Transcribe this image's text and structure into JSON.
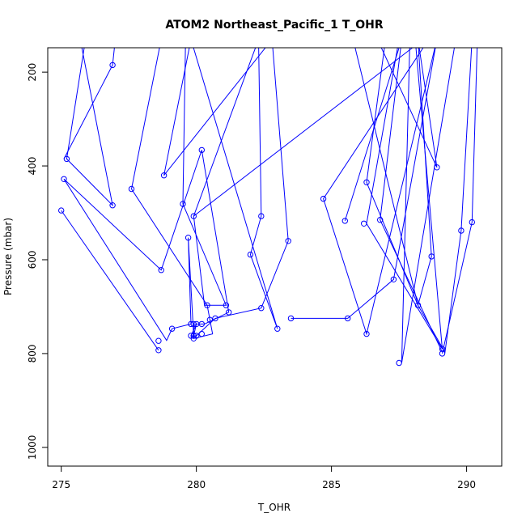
{
  "chart_data": {
    "type": "line",
    "title": "ATOM2 Northeast_Pacific_1 T_OHR",
    "xlabel": "T_OHR",
    "ylabel": "Pressure (mbar)",
    "xlim": [
      274.5,
      291.3
    ],
    "ylim": [
      1040,
      148
    ],
    "y_inverted": true,
    "x_ticks": [
      275,
      280,
      285,
      290
    ],
    "y_ticks": [
      200,
      400,
      600,
      800,
      1000
    ],
    "grid": false,
    "legend": "none",
    "colors": {
      "series": "#0000ff"
    },
    "series": [
      {
        "points": [
          [
            275.9,
            130
          ],
          [
            275.2,
            385
          ],
          [
            276.9,
            484
          ],
          [
            275.7,
            130
          ]
        ]
      },
      {
        "points": [
          [
            278.7,
            130
          ],
          [
            277.6,
            449
          ],
          [
            280.4,
            697
          ],
          [
            280.5,
            728
          ],
          [
            280.6,
            758
          ],
          [
            279.9,
            768
          ],
          [
            279.9,
            737
          ]
        ]
      },
      {
        "points": [
          [
            279.9,
            737
          ],
          [
            280.3,
            737
          ],
          [
            281.2,
            712
          ],
          [
            280.2,
            366
          ],
          [
            278.7,
            622
          ],
          [
            275.1,
            428
          ],
          [
            278.9,
            772
          ],
          [
            279.1,
            747
          ],
          [
            279.8,
            737
          ],
          [
            279.7,
            553
          ],
          [
            279.9,
            762
          ],
          [
            280.0,
            737
          ],
          [
            279.8,
            762
          ],
          [
            280.0,
            762
          ]
        ]
      },
      {
        "points": [
          [
            280.0,
            762
          ],
          [
            280.7,
            725
          ],
          [
            282.4,
            703
          ],
          [
            283.4,
            560
          ],
          [
            282.8,
            130
          ],
          [
            278.8,
            420
          ],
          [
            279.8,
            130
          ]
        ]
      },
      {
        "points": [
          [
            279.8,
            130
          ],
          [
            283.0,
            747
          ],
          [
            282.0,
            589
          ],
          [
            282.4,
            507
          ],
          [
            282.3,
            130
          ],
          [
            279.9,
            507
          ],
          [
            280.3,
            697
          ],
          [
            281.1,
            697
          ],
          [
            279.5,
            481
          ],
          [
            279.6,
            130
          ]
        ]
      },
      {
        "points": [
          [
            277.0,
            130
          ],
          [
            276.9,
            185
          ],
          [
            275.1,
            385
          ]
        ]
      },
      {
        "points": [
          [
            275.0,
            495
          ],
          [
            278.6,
            793
          ]
        ]
      },
      {
        "points": [
          [
            279.9,
            507
          ],
          [
            288.4,
            130
          ]
        ]
      },
      {
        "points": [
          [
            283.5,
            725
          ],
          [
            285.6,
            725
          ],
          [
            287.3,
            642
          ],
          [
            288.9,
            130
          ],
          [
            286.3,
            758
          ],
          [
            284.7,
            470
          ],
          [
            288.6,
            130
          ]
        ]
      },
      {
        "points": [
          [
            285.5,
            517
          ],
          [
            287.6,
            130
          ]
        ]
      },
      {
        "points": [
          [
            289.1,
            797
          ],
          [
            286.8,
            515
          ],
          [
            287.6,
            130
          ]
        ]
      },
      {
        "points": [
          [
            287.5,
            130
          ],
          [
            286.3,
            523
          ],
          [
            289.1,
            790
          ],
          [
            288.1,
            130
          ]
        ]
      },
      {
        "points": [
          [
            288.2,
            130
          ],
          [
            288.7,
            593
          ],
          [
            288.2,
            697
          ],
          [
            286.3,
            435
          ],
          [
            287.0,
            130
          ]
        ]
      },
      {
        "points": [
          [
            285.6,
            130
          ],
          [
            285.8,
            130
          ],
          [
            288.2,
            697
          ],
          [
            289.2,
            797
          ],
          [
            289.8,
            538
          ],
          [
            290.2,
            130
          ]
        ]
      },
      {
        "points": [
          [
            290.4,
            130
          ],
          [
            290.2,
            520
          ],
          [
            289.1,
            800
          ]
        ]
      },
      {
        "points": [
          [
            286.7,
            130
          ],
          [
            288.9,
            403
          ],
          [
            288.2,
            130
          ]
        ]
      },
      {
        "points": [
          [
            289.6,
            130
          ],
          [
            287.6,
            820
          ],
          [
            287.9,
            130
          ]
        ]
      }
    ],
    "markers": [
      [
        275.2,
        385
      ],
      [
        276.9,
        484
      ],
      [
        276.9,
        185
      ],
      [
        275.1,
        428
      ],
      [
        275.0,
        495
      ],
      [
        277.6,
        449
      ],
      [
        278.7,
        622
      ],
      [
        278.8,
        420
      ],
      [
        278.6,
        793
      ],
      [
        278.6,
        773
      ],
      [
        279.1,
        747
      ],
      [
        279.5,
        481
      ],
      [
        279.7,
        553
      ],
      [
        279.8,
        737
      ],
      [
        279.9,
        737
      ],
      [
        279.9,
        762
      ],
      [
        279.9,
        768
      ],
      [
        280.0,
        737
      ],
      [
        279.9,
        507
      ],
      [
        279.8,
        762
      ],
      [
        280.0,
        762
      ],
      [
        280.2,
        366
      ],
      [
        280.2,
        737
      ],
      [
        280.2,
        758
      ],
      [
        280.4,
        697
      ],
      [
        280.5,
        728
      ],
      [
        280.7,
        725
      ],
      [
        281.1,
        697
      ],
      [
        281.2,
        712
      ],
      [
        282.0,
        589
      ],
      [
        282.4,
        507
      ],
      [
        282.4,
        703
      ],
      [
        283.0,
        747
      ],
      [
        283.4,
        560
      ],
      [
        283.5,
        725
      ],
      [
        284.7,
        470
      ],
      [
        285.5,
        517
      ],
      [
        285.6,
        725
      ],
      [
        286.2,
        523
      ],
      [
        286.3,
        435
      ],
      [
        286.3,
        758
      ],
      [
        286.8,
        515
      ],
      [
        287.3,
        642
      ],
      [
        287.5,
        820
      ],
      [
        288.2,
        697
      ],
      [
        288.7,
        593
      ],
      [
        288.9,
        403
      ],
      [
        289.1,
        790
      ],
      [
        289.1,
        800
      ],
      [
        289.8,
        538
      ],
      [
        290.2,
        520
      ]
    ]
  }
}
